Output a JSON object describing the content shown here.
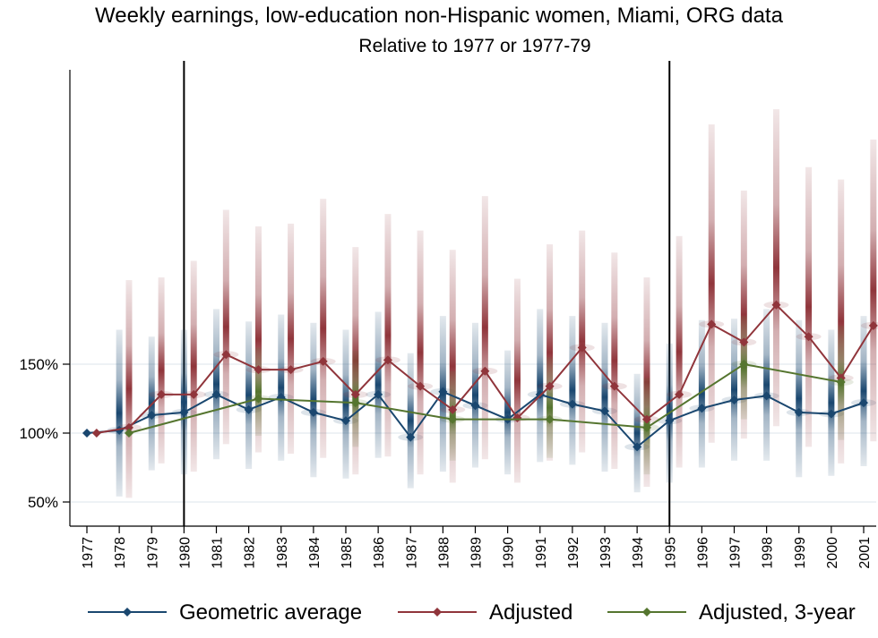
{
  "chart_data": {
    "type": "line",
    "title": "Weekly earnings, low-education non-Hispanic women, Miami, ORG data",
    "subtitle": "Relative to 1977 or 1977-79",
    "xlabel": "",
    "ylabel": "",
    "x": [
      1977,
      1978,
      1979,
      1980,
      1981,
      1982,
      1983,
      1984,
      1985,
      1986,
      1987,
      1988,
      1989,
      1990,
      1991,
      1992,
      1993,
      1994,
      1995,
      1996,
      1997,
      1998,
      1999,
      2000,
      2001
    ],
    "x_tick_labels": [
      "1977",
      "1978",
      "1979",
      "1980",
      "1981",
      "1982",
      "1983",
      "1984",
      "1985",
      "1986",
      "1987",
      "1988",
      "1989",
      "1990",
      "1991",
      "1992",
      "1993",
      "1994",
      "1995",
      "1996",
      "1997",
      "1998",
      "1999",
      "2000",
      "2001"
    ],
    "y_ticks": [
      50,
      100,
      150
    ],
    "y_tick_labels": [
      "50%",
      "100%",
      "150%"
    ],
    "ylim": [
      43,
      330
    ],
    "grid": true,
    "reference_lines_x": [
      1980,
      1995
    ],
    "series": [
      {
        "name": "Geometric average",
        "color": "#1a476f",
        "x_offset": 0,
        "values": [
          100,
          102,
          113,
          115,
          128,
          117,
          126,
          115,
          109,
          128,
          97,
          130,
          120,
          110,
          128,
          121,
          116,
          90,
          109,
          118,
          124,
          127,
          115,
          114,
          122
        ],
        "ci_low": [
          100,
          54,
          73,
          70,
          81,
          74,
          80,
          68,
          67,
          82,
          60,
          72,
          75,
          70,
          79,
          77,
          72,
          57,
          64,
          75,
          80,
          80,
          68,
          69,
          76
        ],
        "ci_high": [
          100,
          175,
          170,
          175,
          190,
          181,
          186,
          180,
          175,
          188,
          158,
          185,
          180,
          160,
          190,
          185,
          180,
          143,
          165,
          182,
          183,
          190,
          182,
          175,
          185
        ]
      },
      {
        "name": "Adjusted",
        "color": "#90353b",
        "x_offset": 0.3,
        "values": [
          100,
          104,
          128,
          128,
          157,
          146,
          146,
          152,
          128,
          153,
          134,
          117,
          145,
          111,
          134,
          162,
          134,
          110,
          128,
          179,
          166,
          193,
          170,
          140,
          178
        ],
        "ci_low": [
          100,
          53,
          78,
          72,
          92,
          86,
          85,
          82,
          70,
          83,
          70,
          64,
          81,
          64,
          80,
          86,
          74,
          61,
          75,
          93,
          96,
          105,
          90,
          78,
          94
        ],
        "ci_high": [
          100,
          211,
          213,
          225,
          262,
          250,
          252,
          270,
          235,
          259,
          247,
          233,
          272,
          212,
          237,
          247,
          231,
          213,
          243,
          324,
          276,
          335,
          293,
          284,
          313
        ]
      },
      {
        "name": "Adjusted, 3-year",
        "color": "#55752f",
        "x_offset": 0.3,
        "x": [
          1978,
          1982,
          1985,
          1988,
          1991,
          1994,
          1997,
          2000
        ],
        "values": [
          100,
          125,
          122,
          110,
          110,
          104,
          150,
          137
        ],
        "ci_low": [
          100,
          98,
          90,
          80,
          82,
          70,
          110,
          95
        ],
        "ci_high": [
          100,
          162,
          160,
          145,
          155,
          140,
          185,
          178
        ]
      }
    ],
    "legend": {
      "position": "bottom",
      "entries": [
        "Geometric average",
        "Adjusted",
        "Adjusted, 3-year"
      ]
    }
  }
}
